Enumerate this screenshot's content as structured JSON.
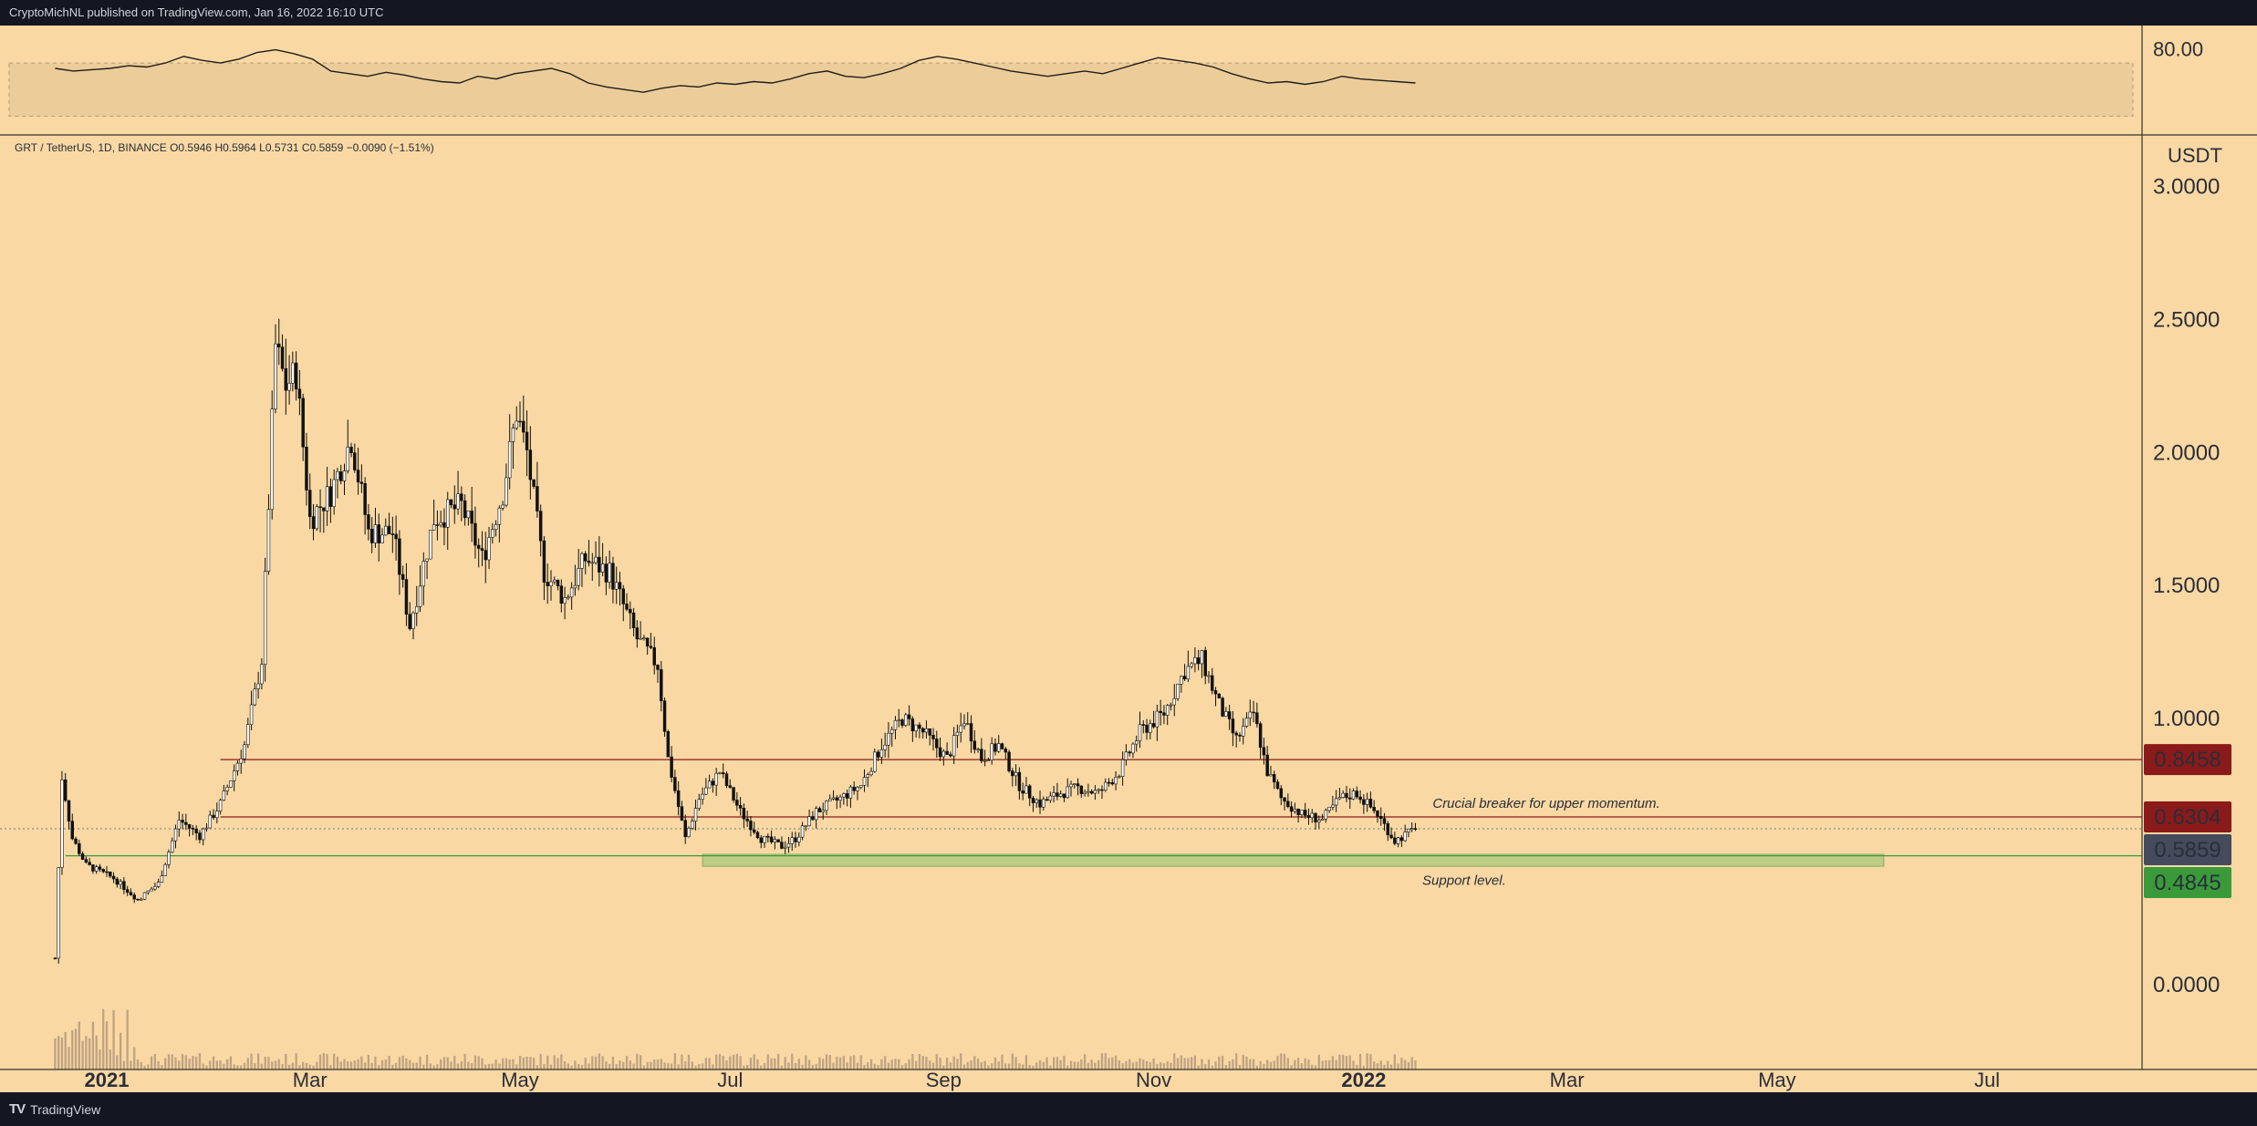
{
  "header": {
    "published": "CryptoMichNL published on TradingView.com, Jan 16, 2022 16:10 UTC"
  },
  "footer": {
    "logo_mark": "TV",
    "brand": "TradingView"
  },
  "legend": {
    "symbol": "GRT / TetherUS, 1D, BINANCE",
    "o_label": "O",
    "o": "0.5946",
    "h_label": "H",
    "h": "0.5964",
    "l_label": "L",
    "l": "0.5731",
    "c_label": "C",
    "c": "0.5859",
    "change": "−0.0090 (−1.51%)"
  },
  "colors": {
    "background": "#f9d8a3",
    "resistance": "#8b1a1a",
    "current": "#454b5c",
    "support": "#3a9a3a",
    "support_zone": "#a8c97a"
  },
  "chart_data": {
    "type": "candlestick",
    "symbol": "GRT / TetherUS",
    "interval": "1D",
    "exchange": "BINANCE",
    "currency": "USDT",
    "ylim": [
      -0.25,
      3.2
    ],
    "y_ticks": [
      "3.0000",
      "2.5000",
      "2.0000",
      "1.5000",
      "1.0000",
      "0.0000"
    ],
    "y_tick_values": [
      3.0,
      2.5,
      2.0,
      1.5,
      1.0,
      0.0
    ],
    "x_ticks": [
      "2021",
      "Mar",
      "May",
      "Jul",
      "Sep",
      "Nov",
      "2022",
      "Mar",
      "May",
      "Jul"
    ],
    "x_tick_dates": [
      "2021-01-01",
      "2021-03-01",
      "2021-05-01",
      "2021-07-01",
      "2021-09-01",
      "2021-11-01",
      "2022-01-01",
      "2022-03-01",
      "2022-05-01",
      "2022-07-01"
    ],
    "x_tick_bold": [
      true,
      false,
      false,
      false,
      false,
      false,
      true,
      false,
      false,
      false
    ],
    "x_range": [
      "2020-12-01",
      "2022-08-15"
    ],
    "series_path": [
      [
        "2020-12-17",
        0.1
      ],
      [
        "2020-12-19",
        0.78
      ],
      [
        "2020-12-22",
        0.55
      ],
      [
        "2020-12-26",
        0.45
      ],
      [
        "2021-01-03",
        0.4
      ],
      [
        "2021-01-10",
        0.32
      ],
      [
        "2021-01-16",
        0.38
      ],
      [
        "2021-01-22",
        0.62
      ],
      [
        "2021-01-28",
        0.56
      ],
      [
        "2021-02-03",
        0.68
      ],
      [
        "2021-02-10",
        0.9
      ],
      [
        "2021-02-15",
        1.22
      ],
      [
        "2021-02-19",
        2.4
      ],
      [
        "2021-02-22",
        2.25
      ],
      [
        "2021-02-25",
        2.3
      ],
      [
        "2021-03-01",
        1.75
      ],
      [
        "2021-03-07",
        1.85
      ],
      [
        "2021-03-13",
        2.05
      ],
      [
        "2021-03-18",
        1.7
      ],
      [
        "2021-03-25",
        1.7
      ],
      [
        "2021-03-30",
        1.35
      ],
      [
        "2021-04-06",
        1.75
      ],
      [
        "2021-04-14",
        1.8
      ],
      [
        "2021-04-20",
        1.6
      ],
      [
        "2021-04-26",
        1.85
      ],
      [
        "2021-04-30",
        2.15
      ],
      [
        "2021-05-03",
        2.0
      ],
      [
        "2021-05-08",
        1.55
      ],
      [
        "2021-05-14",
        1.45
      ],
      [
        "2021-05-20",
        1.6
      ],
      [
        "2021-05-27",
        1.55
      ],
      [
        "2021-06-04",
        1.3
      ],
      [
        "2021-06-10",
        1.2
      ],
      [
        "2021-06-13",
        0.85
      ],
      [
        "2021-06-18",
        0.55
      ],
      [
        "2021-06-22",
        0.7
      ],
      [
        "2021-06-28",
        0.8
      ],
      [
        "2021-07-04",
        0.65
      ],
      [
        "2021-07-10",
        0.55
      ],
      [
        "2021-07-16",
        0.52
      ],
      [
        "2021-07-20",
        0.55
      ],
      [
        "2021-07-26",
        0.65
      ],
      [
        "2021-08-02",
        0.7
      ],
      [
        "2021-08-08",
        0.75
      ],
      [
        "2021-08-14",
        0.9
      ],
      [
        "2021-08-20",
        1.0
      ],
      [
        "2021-08-26",
        0.95
      ],
      [
        "2021-09-02",
        0.85
      ],
      [
        "2021-09-07",
        1.0
      ],
      [
        "2021-09-12",
        0.85
      ],
      [
        "2021-09-17",
        0.9
      ],
      [
        "2021-09-23",
        0.75
      ],
      [
        "2021-09-29",
        0.68
      ],
      [
        "2021-10-05",
        0.72
      ],
      [
        "2021-10-10",
        0.74
      ],
      [
        "2021-10-16",
        0.72
      ],
      [
        "2021-10-22",
        0.8
      ],
      [
        "2021-10-28",
        0.95
      ],
      [
        "2021-11-04",
        1.02
      ],
      [
        "2021-11-10",
        1.18
      ],
      [
        "2021-11-15",
        1.22
      ],
      [
        "2021-11-20",
        1.05
      ],
      [
        "2021-11-25",
        0.92
      ],
      [
        "2021-11-30",
        1.02
      ],
      [
        "2021-12-04",
        0.8
      ],
      [
        "2021-12-08",
        0.7
      ],
      [
        "2021-12-14",
        0.64
      ],
      [
        "2021-12-20",
        0.62
      ],
      [
        "2021-12-25",
        0.7
      ],
      [
        "2021-12-30",
        0.72
      ],
      [
        "2022-01-05",
        0.64
      ],
      [
        "2022-01-10",
        0.54
      ],
      [
        "2022-01-16",
        0.5859
      ]
    ],
    "levels": [
      {
        "value": 0.8458,
        "label": "0.8458",
        "kind": "resistance",
        "from": "2021-02-03"
      },
      {
        "value": 0.6304,
        "label": "0.6304",
        "kind": "resistance",
        "from": "2021-02-03"
      },
      {
        "value": 0.5859,
        "label": "0.5859",
        "kind": "current",
        "from": "2020-12-01"
      },
      {
        "value": 0.4845,
        "label": "0.4845",
        "kind": "support",
        "from": "2020-12-20"
      }
    ],
    "support_zone": {
      "from": "2021-06-23",
      "to": "2022-06-01",
      "top": 0.49,
      "bottom": 0.445
    },
    "annotations": [
      {
        "text": "Crucial breaker for upper momentum.",
        "date": "2022-01-21",
        "value": 0.665
      },
      {
        "text": "Support level.",
        "date": "2022-01-18",
        "value": 0.375
      }
    ],
    "rsi": {
      "tick_label": "80.00",
      "band": [
        30,
        70
      ],
      "values": [
        66,
        64,
        65,
        66,
        68,
        67,
        70,
        75,
        72,
        70,
        73,
        78,
        80,
        77,
        73,
        64,
        62,
        60,
        63,
        61,
        58,
        56,
        55,
        60,
        58,
        62,
        64,
        66,
        62,
        55,
        52,
        50,
        48,
        51,
        53,
        52,
        55,
        54,
        56,
        55,
        58,
        62,
        64,
        60,
        59,
        62,
        66,
        72,
        75,
        73,
        70,
        67,
        64,
        62,
        60,
        62,
        64,
        62,
        66,
        70,
        74,
        72,
        70,
        67,
        62,
        58,
        55,
        56,
        54,
        56,
        60,
        58,
        57,
        56,
        55
      ]
    }
  }
}
